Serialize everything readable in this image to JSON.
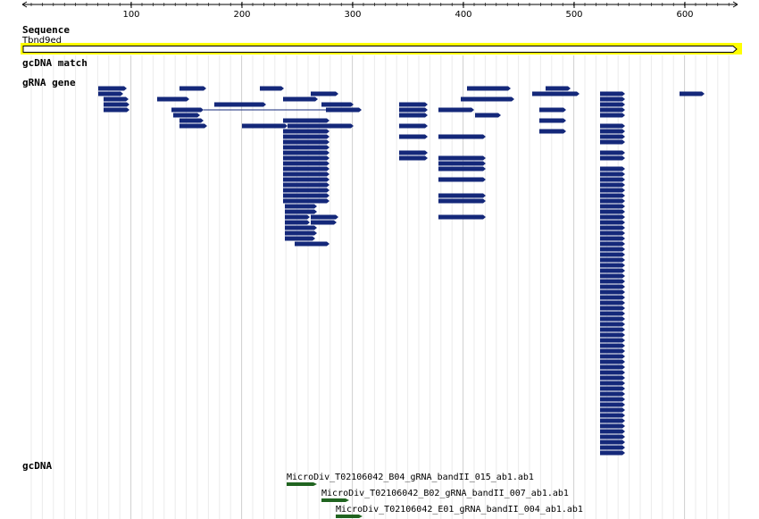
{
  "ruler": {
    "ticks": [
      "100",
      "200",
      "300",
      "400",
      "500",
      "600"
    ]
  },
  "tracks": {
    "sequence": {
      "title": "Sequence",
      "name": "Tbnd9ed"
    },
    "gcdna_match": {
      "title": "gcDNA match"
    },
    "grna_gene": {
      "title": "gRNA gene"
    },
    "gcdna": {
      "title": "gcDNA",
      "reads": [
        "MicroDiv_T02106042_B04_gRNA_bandII_015_ab1.ab1",
        "MicroDiv_T02106042_B02_gRNA_bandII_007_ab1.ab1",
        "MicroDiv_T02106042_E01_gRNA_bandII_004_ab1.ab1"
      ]
    }
  },
  "colors": {
    "feature": "#14287a",
    "read": "#206420",
    "highlight": "#ffff00",
    "grid": "#dcdcdc"
  }
}
